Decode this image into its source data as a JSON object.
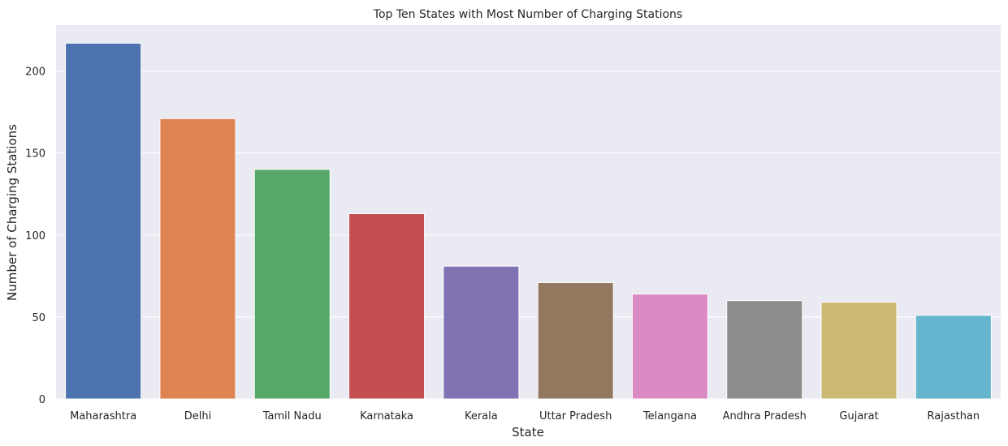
{
  "chart_data": {
    "type": "bar",
    "title": "Top Ten States with Most Number of Charging Stations",
    "xlabel": "State",
    "ylabel": "Number of Charging Stations",
    "categories": [
      "Maharashtra",
      "Delhi",
      "Tamil Nadu",
      "Karnataka",
      "Kerala",
      "Uttar Pradesh",
      "Telangana",
      "Andhra Pradesh",
      "Gujarat",
      "Rajasthan"
    ],
    "values": [
      217,
      171,
      140,
      113,
      81,
      71,
      64,
      60,
      59,
      51
    ],
    "colors": [
      "#4c72b0",
      "#dd8452",
      "#55a868",
      "#c44e52",
      "#8172b3",
      "#937860",
      "#da8bc3",
      "#8c8c8c",
      "#ccb974",
      "#64b5cd"
    ],
    "ylim": [
      0,
      228
    ],
    "yticks": [
      "0",
      "50",
      "100",
      "150",
      "200"
    ],
    "grid": true,
    "background_color": "#eaeaf2"
  }
}
